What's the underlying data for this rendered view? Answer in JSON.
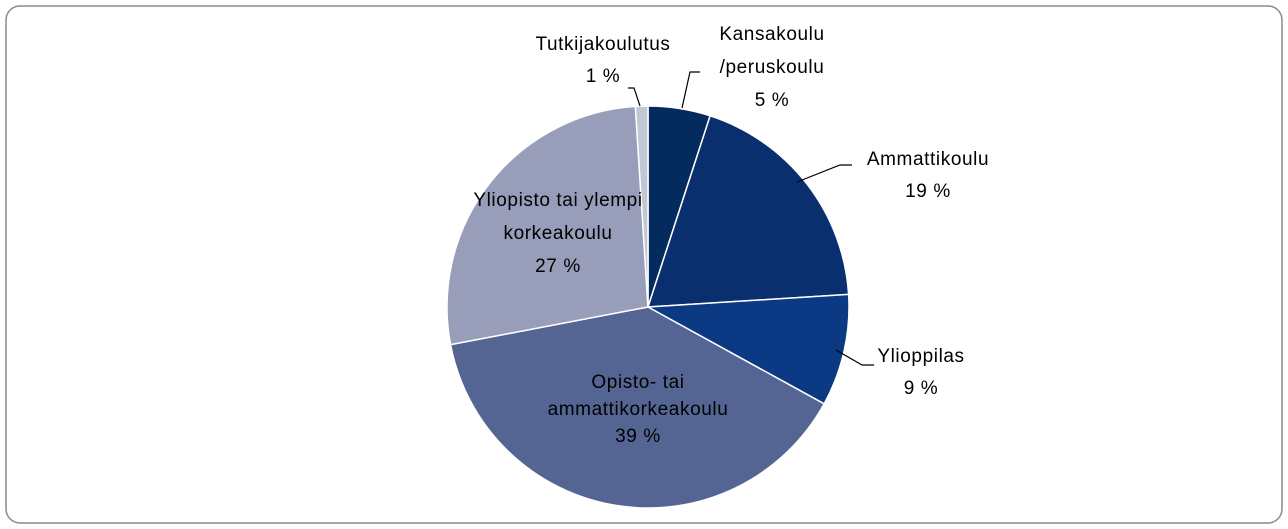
{
  "chart_data": {
    "type": "pie",
    "categories": [
      "Kansakoulu /peruskoulu",
      "Ammattikoulu",
      "Ylioppilas",
      "Opisto- tai ammattikorkeakoulu",
      "Yliopisto tai ylempi korkeakoulu",
      "Tutkijakoulutus"
    ],
    "values": [
      5,
      19,
      9,
      39,
      27,
      1
    ],
    "value_labels": [
      "5 %",
      "19 %",
      "9 %",
      "39 %",
      "27 %",
      "1 %"
    ],
    "colors": [
      "#042b5e",
      "#0a2f6e",
      "#0b3984",
      "#556593",
      "#989eb9",
      "#c2c6d5"
    ]
  }
}
